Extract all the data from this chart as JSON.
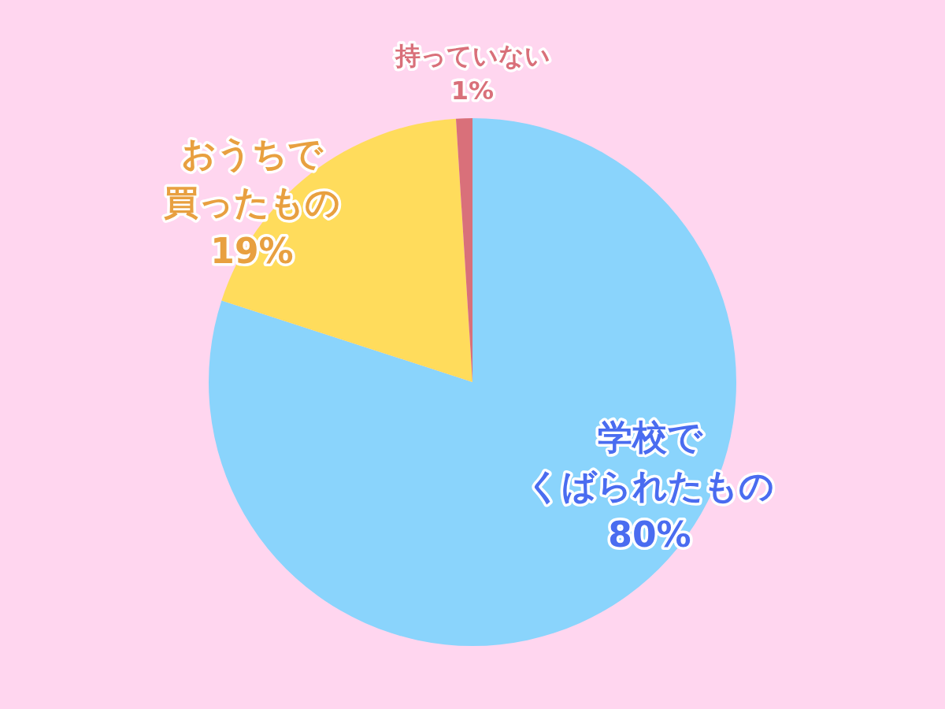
{
  "chart_data": {
    "type": "pie",
    "categories": [
      "学校でくばられたもの",
      "おうちで買ったもの",
      "持っていない"
    ],
    "values": [
      80,
      19,
      1
    ],
    "colors": [
      "#8ad4fc",
      "#ffdc5c",
      "#d9707a"
    ],
    "value_labels": [
      "80%",
      "19%",
      "1%"
    ]
  }
}
